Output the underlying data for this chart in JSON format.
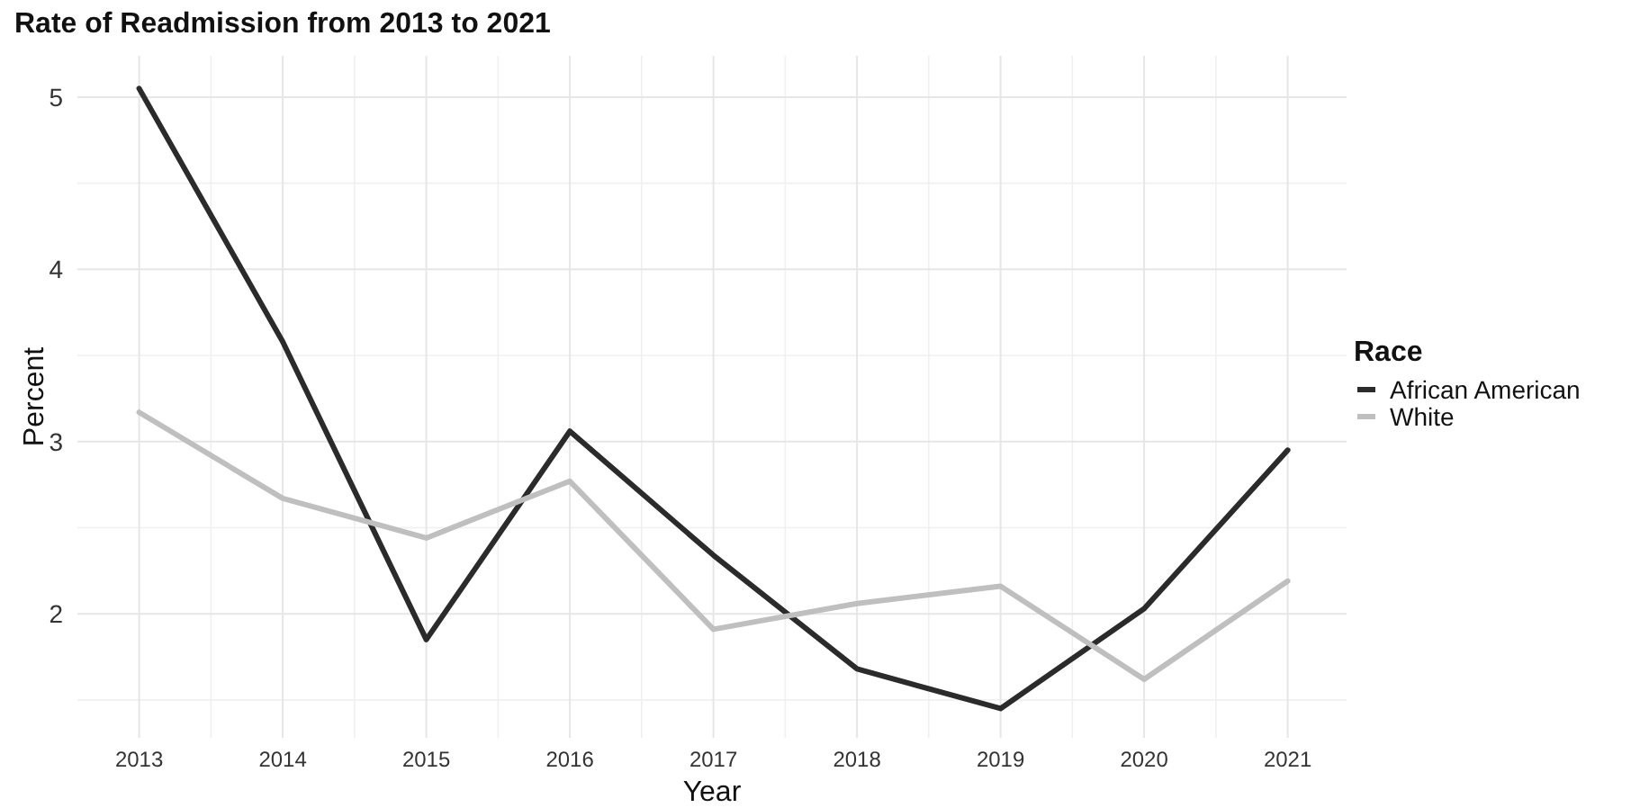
{
  "chart_data": {
    "type": "line",
    "title": "Rate of Readmission from 2013 to 2021",
    "xlabel": "Year",
    "ylabel": "Percent",
    "legend_title": "Race",
    "x": [
      2013,
      2014,
      2015,
      2016,
      2017,
      2018,
      2019,
      2020,
      2021
    ],
    "series": [
      {
        "name": "African American",
        "color": "#2b2b2b",
        "values": [
          5.05,
          3.58,
          1.85,
          3.06,
          2.34,
          1.68,
          1.45,
          2.03,
          2.95
        ]
      },
      {
        "name": "White",
        "color": "#bfbfbf",
        "values": [
          3.17,
          2.67,
          2.44,
          2.77,
          1.91,
          2.06,
          2.16,
          1.62,
          2.19
        ]
      }
    ],
    "xlim": [
      2012.57,
      2021.41
    ],
    "ylim": [
      1.28,
      5.24
    ],
    "xticks": [
      2013,
      2014,
      2015,
      2016,
      2017,
      2018,
      2019,
      2020,
      2021
    ],
    "yticks": [
      2,
      3,
      4,
      5
    ],
    "grid": true,
    "legend": "right",
    "marker": "none",
    "line_style": "solid"
  }
}
